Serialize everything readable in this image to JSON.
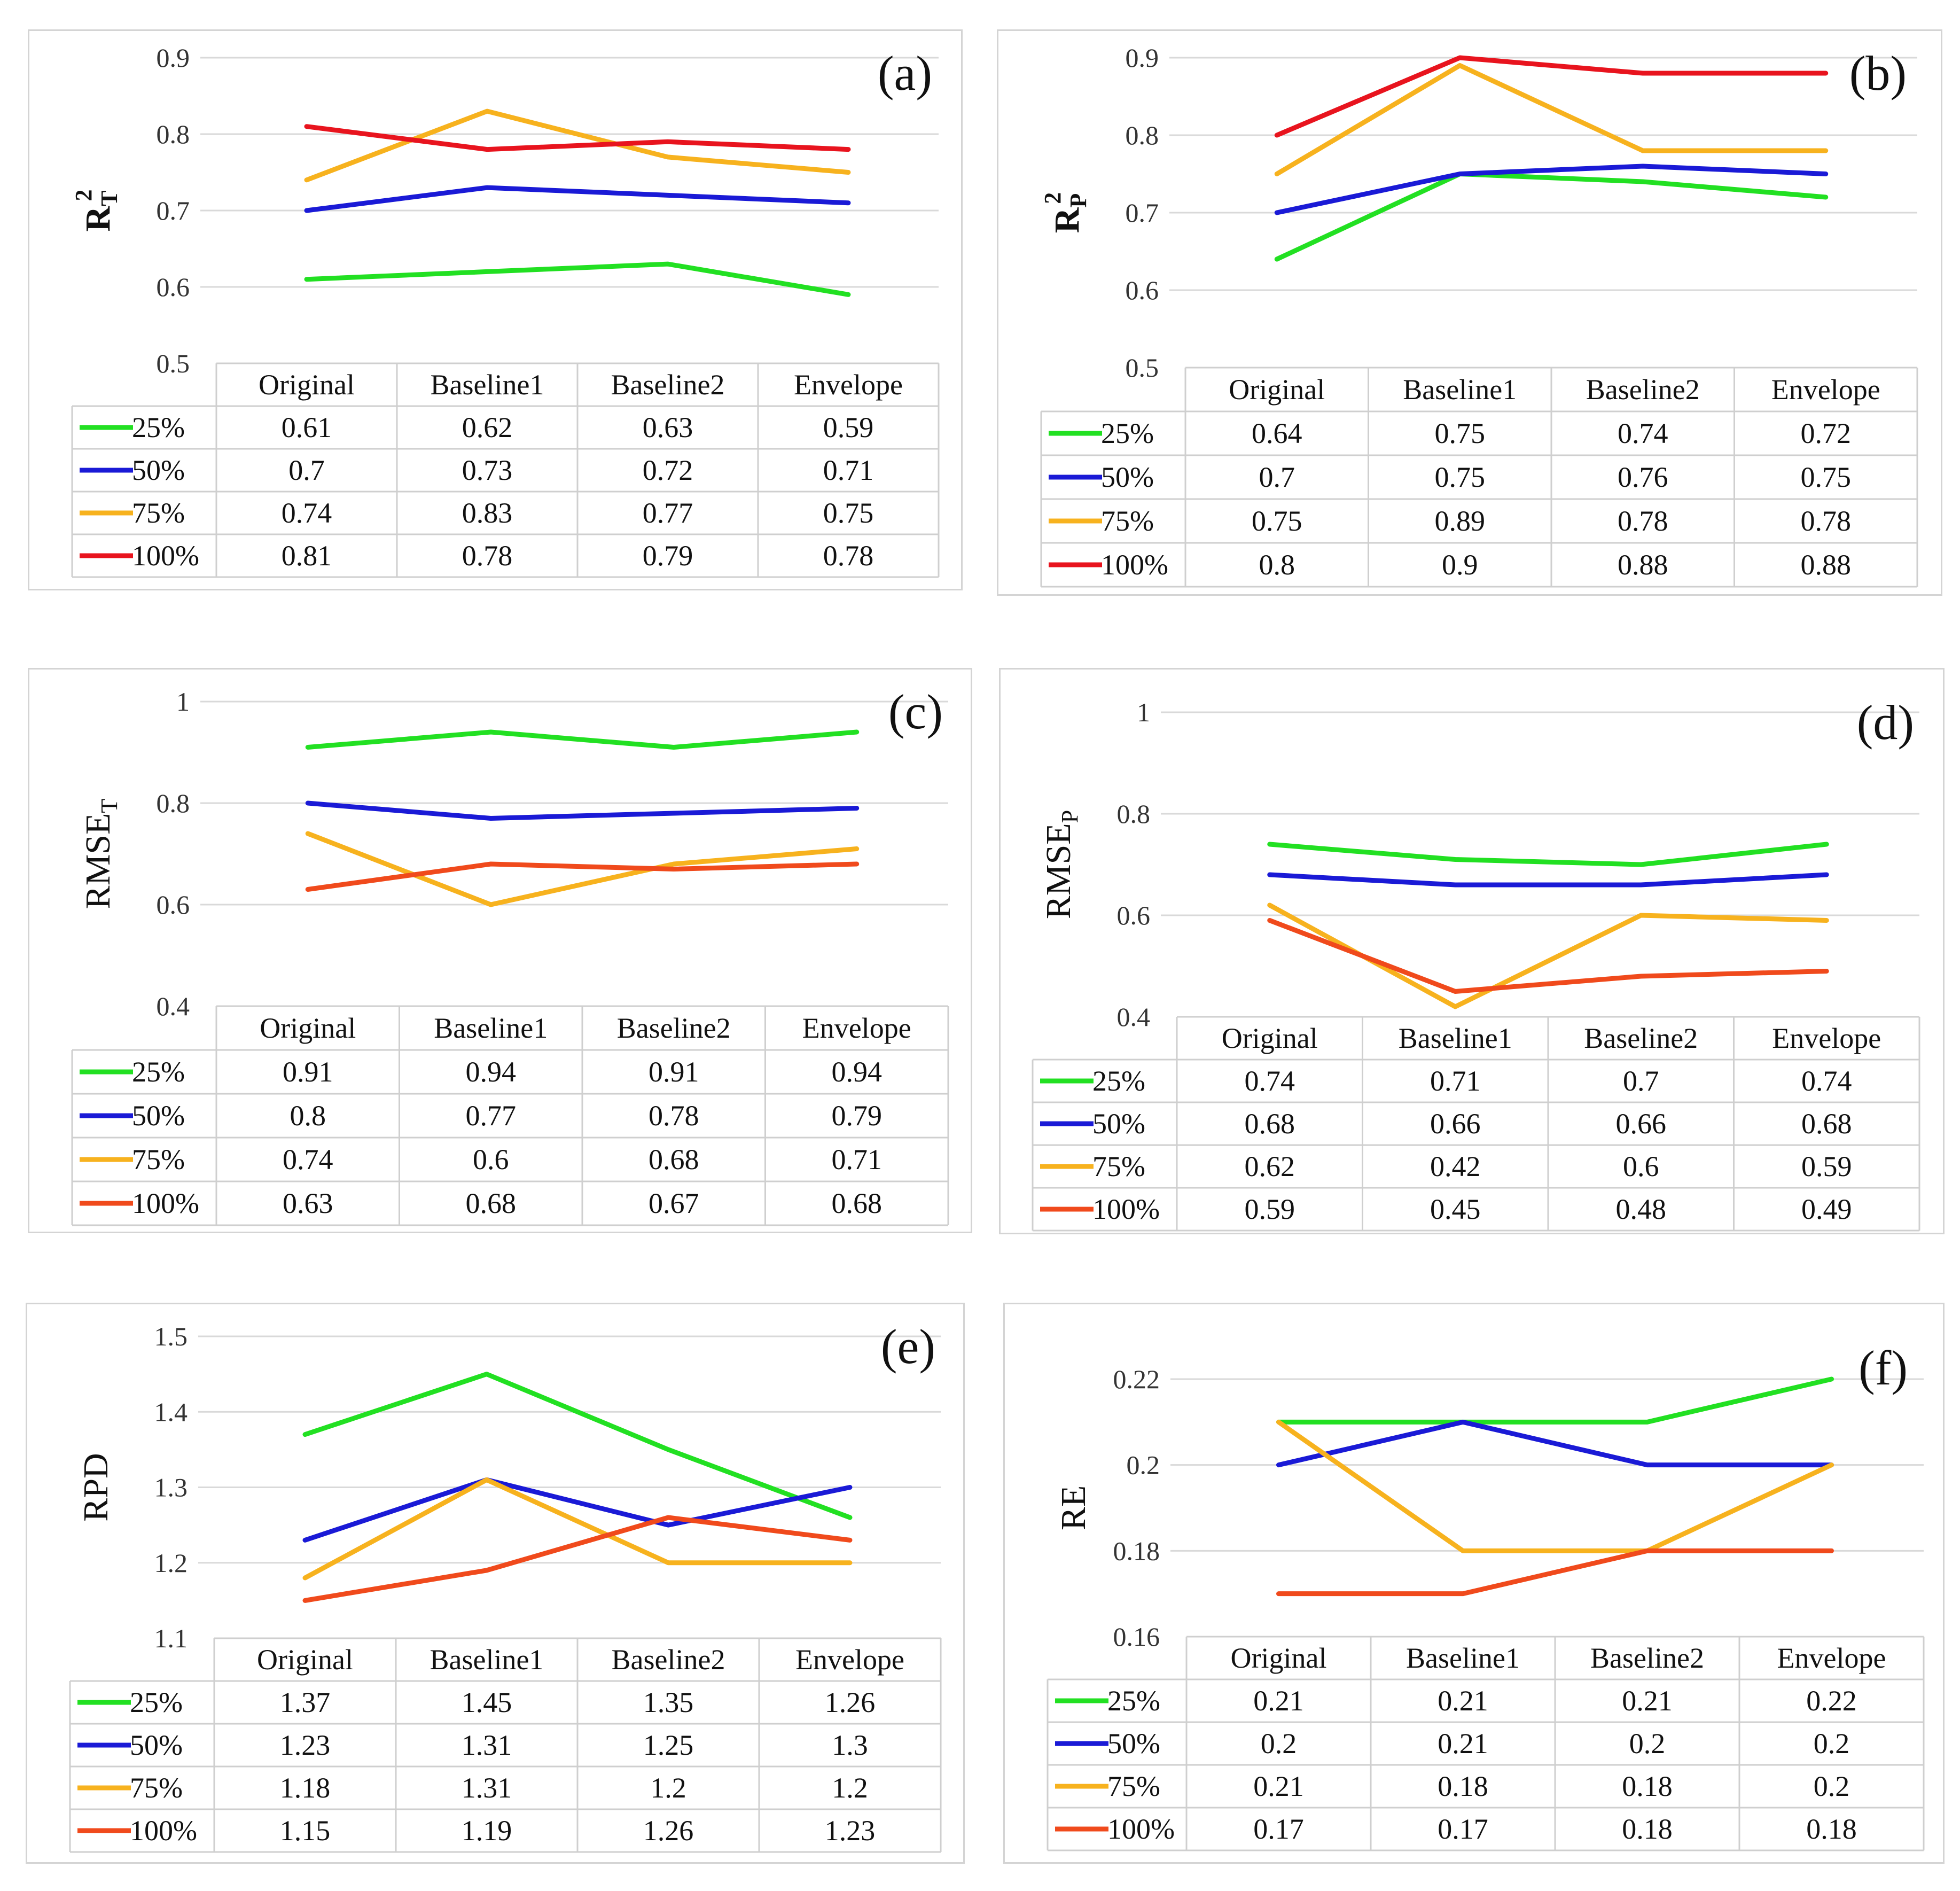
{
  "chart_data": [
    {
      "type": "line",
      "panel": "(a)",
      "ylabel": "R",
      "ylabel_sub": "T",
      "ylabel_sup": "2",
      "bold_label": true,
      "ylim": [
        0.5,
        0.9
      ],
      "yticks": [
        "0.5",
        "0.6",
        "0.7",
        "0.8",
        "0.9"
      ],
      "categories": [
        "Original",
        "Baseline1",
        "Baseline2",
        "Envelope"
      ],
      "series": [
        {
          "name": "25%",
          "color": "#22e022",
          "values": [
            0.61,
            0.62,
            0.63,
            0.59
          ],
          "labels": [
            "0.61",
            "0.62",
            "0.63",
            "0.59"
          ]
        },
        {
          "name": "50%",
          "color": "#1a1ad6",
          "values": [
            0.7,
            0.73,
            0.72,
            0.71
          ],
          "labels": [
            "0.7",
            "0.73",
            "0.72",
            "0.71"
          ]
        },
        {
          "name": "75%",
          "color": "#f7b21e",
          "values": [
            0.74,
            0.83,
            0.77,
            0.75
          ],
          "labels": [
            "0.74",
            "0.83",
            "0.77",
            "0.75"
          ]
        },
        {
          "name": "100%",
          "color": "#e8141e",
          "values": [
            0.81,
            0.78,
            0.79,
            0.78
          ],
          "labels": [
            "0.81",
            "0.78",
            "0.79",
            "0.78"
          ]
        }
      ]
    },
    {
      "type": "line",
      "panel": "(b)",
      "ylabel": "R",
      "ylabel_sub": "P",
      "ylabel_sup": "2",
      "bold_label": true,
      "ylim": [
        0.5,
        0.9
      ],
      "yticks": [
        "0.5",
        "0.6",
        "0.7",
        "0.8",
        "0.9"
      ],
      "categories": [
        "Original",
        "Baseline1",
        "Baseline2",
        "Envelope"
      ],
      "series": [
        {
          "name": "25%",
          "color": "#22e022",
          "values": [
            0.64,
            0.75,
            0.74,
            0.72
          ],
          "labels": [
            "0.64",
            "0.75",
            "0.74",
            "0.72"
          ]
        },
        {
          "name": "50%",
          "color": "#1a1ad6",
          "values": [
            0.7,
            0.75,
            0.76,
            0.75
          ],
          "labels": [
            "0.7",
            "0.75",
            "0.76",
            "0.75"
          ]
        },
        {
          "name": "75%",
          "color": "#f7b21e",
          "values": [
            0.75,
            0.89,
            0.78,
            0.78
          ],
          "labels": [
            "0.75",
            "0.89",
            "0.78",
            "0.78"
          ]
        },
        {
          "name": "100%",
          "color": "#e8141e",
          "values": [
            0.8,
            0.9,
            0.88,
            0.88
          ],
          "labels": [
            "0.8",
            "0.9",
            "0.88",
            "0.88"
          ]
        }
      ]
    },
    {
      "type": "line",
      "panel": "(c)",
      "ylabel": "RMSE",
      "ylabel_sub": "T",
      "ylabel_sup": "",
      "bold_label": false,
      "ylim": [
        0.4,
        1.0
      ],
      "yticks": [
        "0.4",
        "0.6",
        "0.8",
        "1"
      ],
      "categories": [
        "Original",
        "Baseline1",
        "Baseline2",
        "Envelope"
      ],
      "series": [
        {
          "name": "25%",
          "color": "#22e022",
          "values": [
            0.91,
            0.94,
            0.91,
            0.94
          ],
          "labels": [
            "0.91",
            "0.94",
            "0.91",
            "0.94"
          ]
        },
        {
          "name": "50%",
          "color": "#1a1ad6",
          "values": [
            0.8,
            0.77,
            0.78,
            0.79
          ],
          "labels": [
            "0.8",
            "0.77",
            "0.78",
            "0.79"
          ]
        },
        {
          "name": "75%",
          "color": "#f7b21e",
          "values": [
            0.74,
            0.6,
            0.68,
            0.71
          ],
          "labels": [
            "0.74",
            "0.6",
            "0.68",
            "0.71"
          ]
        },
        {
          "name": "100%",
          "color": "#f04a1c",
          "values": [
            0.63,
            0.68,
            0.67,
            0.68
          ],
          "labels": [
            "0.63",
            "0.68",
            "0.67",
            "0.68"
          ]
        }
      ]
    },
    {
      "type": "line",
      "panel": "(d)",
      "ylabel": "RMSE",
      "ylabel_sub": "P",
      "ylabel_sup": "",
      "bold_label": false,
      "ylim": [
        0.4,
        1.0
      ],
      "yticks": [
        "0.4",
        "0.6",
        "0.8",
        "1"
      ],
      "categories": [
        "Original",
        "Baseline1",
        "Baseline2",
        "Envelope"
      ],
      "series": [
        {
          "name": "25%",
          "color": "#22e022",
          "values": [
            0.74,
            0.71,
            0.7,
            0.74
          ],
          "labels": [
            "0.74",
            "0.71",
            "0.7",
            "0.74"
          ]
        },
        {
          "name": "50%",
          "color": "#1a1ad6",
          "values": [
            0.68,
            0.66,
            0.66,
            0.68
          ],
          "labels": [
            "0.68",
            "0.66",
            "0.66",
            "0.68"
          ]
        },
        {
          "name": "75%",
          "color": "#f7b21e",
          "values": [
            0.62,
            0.42,
            0.6,
            0.59
          ],
          "labels": [
            "0.62",
            "0.42",
            "0.6",
            "0.59"
          ]
        },
        {
          "name": "100%",
          "color": "#f04a1c",
          "values": [
            0.59,
            0.45,
            0.48,
            0.49
          ],
          "labels": [
            "0.59",
            "0.45",
            "0.48",
            "0.49"
          ]
        }
      ]
    },
    {
      "type": "line",
      "panel": "(e)",
      "ylabel": "RPD",
      "ylabel_sub": "",
      "ylabel_sup": "",
      "bold_label": false,
      "ylim": [
        1.1,
        1.5
      ],
      "yticks": [
        "1.1",
        "1.2",
        "1.3",
        "1.4",
        "1.5"
      ],
      "categories": [
        "Original",
        "Baseline1",
        "Baseline2",
        "Envelope"
      ],
      "series": [
        {
          "name": "25%",
          "color": "#22e022",
          "values": [
            1.37,
            1.45,
            1.35,
            1.26
          ],
          "labels": [
            "1.37",
            "1.45",
            "1.35",
            "1.26"
          ]
        },
        {
          "name": "50%",
          "color": "#1a1ad6",
          "values": [
            1.23,
            1.31,
            1.25,
            1.3
          ],
          "labels": [
            "1.23",
            "1.31",
            "1.25",
            "1.3"
          ]
        },
        {
          "name": "75%",
          "color": "#f7b21e",
          "values": [
            1.18,
            1.31,
            1.2,
            1.2
          ],
          "labels": [
            "1.18",
            "1.31",
            "1.2",
            "1.2"
          ]
        },
        {
          "name": "100%",
          "color": "#f04a1c",
          "values": [
            1.15,
            1.19,
            1.26,
            1.23
          ],
          "labels": [
            "1.15",
            "1.19",
            "1.26",
            "1.23"
          ]
        }
      ]
    },
    {
      "type": "line",
      "panel": "(f)",
      "ylabel": "RE",
      "ylabel_sub": "",
      "ylabel_sup": "",
      "bold_label": false,
      "ylim": [
        0.16,
        0.22
      ],
      "yticks": [
        "0.16",
        "0.18",
        "0.2",
        "0.22"
      ],
      "categories": [
        "Original",
        "Baseline1",
        "Baseline2",
        "Envelope"
      ],
      "series": [
        {
          "name": "25%",
          "color": "#22e022",
          "values": [
            0.21,
            0.21,
            0.21,
            0.22
          ],
          "labels": [
            "0.21",
            "0.21",
            "0.21",
            "0.22"
          ]
        },
        {
          "name": "50%",
          "color": "#1a1ad6",
          "values": [
            0.2,
            0.21,
            0.2,
            0.2
          ],
          "labels": [
            "0.2",
            "0.21",
            "0.2",
            "0.2"
          ]
        },
        {
          "name": "75%",
          "color": "#f7b21e",
          "values": [
            0.21,
            0.18,
            0.18,
            0.2
          ],
          "labels": [
            "0.21",
            "0.18",
            "0.18",
            "0.2"
          ]
        },
        {
          "name": "100%",
          "color": "#f04a1c",
          "values": [
            0.17,
            0.17,
            0.18,
            0.18
          ],
          "labels": [
            "0.17",
            "0.17",
            "0.18",
            "0.18"
          ]
        }
      ]
    }
  ]
}
